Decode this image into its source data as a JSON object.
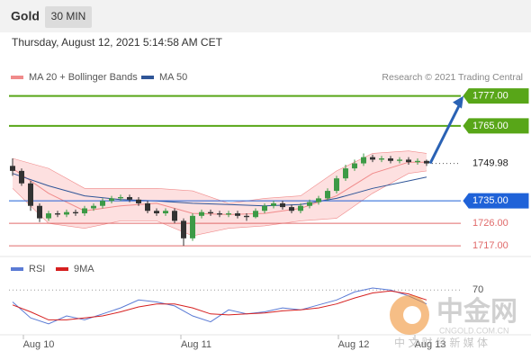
{
  "header": {
    "title": "Gold",
    "interval": "30 MIN",
    "timestamp": "Thursday, August 12, 2021 5:14:58 AM CET"
  },
  "watermark": {
    "brand": "中金网",
    "site": "CNGOLD.COM.CN",
    "tagline": "中 文 财 经 新 媒 体"
  },
  "chart_data": [
    {
      "type": "candlestick",
      "credit": "Research © 2021 Trading Central",
      "xlim": [
        -0.4,
        46.6
      ],
      "ylim": [
        1712,
        1792
      ],
      "up_color": "#3d9a46",
      "down_color": "#333333",
      "open": [
        1749,
        1747,
        1742,
        1733,
        1728,
        1730,
        1729.5,
        1730.5,
        1730,
        1732,
        1733,
        1735,
        1736,
        1736.5,
        1735.5,
        1734,
        1731,
        1730,
        1731,
        1727,
        1720,
        1729,
        1730.5,
        1730,
        1729.5,
        1730,
        1729,
        1728.5,
        1731,
        1733,
        1734,
        1732.5,
        1731,
        1733,
        1734.5,
        1736,
        1739,
        1744,
        1748,
        1750,
        1752.5,
        1751.5,
        1752,
        1751,
        1751.5,
        1750.5,
        1751
      ],
      "high": [
        1752,
        1748,
        1743,
        1734,
        1731,
        1731,
        1731.5,
        1731.5,
        1733,
        1734,
        1736,
        1737,
        1737.5,
        1737.5,
        1736.5,
        1735,
        1732,
        1732,
        1732,
        1728,
        1730,
        1731.5,
        1731.5,
        1731,
        1731,
        1731,
        1730,
        1732,
        1734,
        1735,
        1735,
        1733.5,
        1734,
        1735.5,
        1737,
        1740,
        1745,
        1749.5,
        1751.5,
        1754,
        1753.5,
        1753,
        1753,
        1752.5,
        1752.5,
        1752,
        1751.5
      ],
      "low": [
        1745,
        1741,
        1731,
        1726.5,
        1727,
        1728.5,
        1728.5,
        1729,
        1729,
        1731,
        1732,
        1734,
        1735,
        1734.5,
        1733,
        1730,
        1729,
        1729,
        1726,
        1717,
        1719,
        1728,
        1729,
        1728.5,
        1728.5,
        1728,
        1727,
        1728,
        1730,
        1732,
        1731.5,
        1730,
        1730,
        1732,
        1733.5,
        1735,
        1738,
        1743,
        1747,
        1749,
        1750.5,
        1750.5,
        1750,
        1750,
        1749.5,
        1749.5,
        1749
      ],
      "close": [
        1747,
        1742,
        1733,
        1728,
        1730,
        1729.5,
        1730.5,
        1730,
        1732,
        1733,
        1735,
        1736,
        1736.5,
        1735.5,
        1734,
        1731,
        1730,
        1731,
        1727,
        1720,
        1729,
        1730.5,
        1730,
        1729.5,
        1730,
        1729,
        1728.5,
        1731,
        1733,
        1734,
        1732.5,
        1731,
        1733,
        1734.5,
        1736,
        1739,
        1744,
        1748,
        1750,
        1752.5,
        1751.5,
        1752,
        1751,
        1751.5,
        1750.5,
        1751,
        1749.98
      ],
      "bands": {
        "name": "MA 20 + Bollinger Bands",
        "color": "#f08b8b",
        "fill": "#fde0e0",
        "x": [
          0,
          4,
          8,
          12,
          16,
          20,
          24,
          28,
          32,
          36,
          40,
          44,
          46
        ],
        "values": [
          1748,
          1738,
          1731,
          1733,
          1734,
          1730,
          1729.5,
          1730,
          1732,
          1737,
          1746,
          1750.5,
          1750.5
        ],
        "upper": [
          1752,
          1748,
          1740,
          1740,
          1740,
          1739,
          1734,
          1736,
          1737,
          1747,
          1754,
          1755,
          1754
        ],
        "lower": [
          1740,
          1726,
          1724,
          1727,
          1727,
          1721,
          1724,
          1725,
          1727,
          1728,
          1738,
          1746,
          1747
        ]
      },
      "series": [
        {
          "name": "MA 50",
          "color": "#2f5597",
          "x": [
            0,
            4,
            8,
            12,
            16,
            20,
            24,
            28,
            32,
            36,
            40,
            44,
            46
          ],
          "values": [
            1746,
            1741,
            1737,
            1735.5,
            1735,
            1734,
            1733.5,
            1733,
            1733.5,
            1736,
            1740,
            1743,
            1744.5
          ]
        }
      ],
      "levels": [
        {
          "value": 1777,
          "label": "1777.00",
          "color": "#58a618",
          "style": "box"
        },
        {
          "value": 1765,
          "label": "1765.00",
          "color": "#58a618",
          "style": "box"
        },
        {
          "value": 1749.98,
          "label": "1749.98",
          "color": "#333333",
          "style": "current"
        },
        {
          "value": 1735,
          "label": "1735.00",
          "color": "#1f62d8",
          "style": "box"
        },
        {
          "value": 1726,
          "label": "1726.00",
          "color": "#e06a6a",
          "style": "text"
        },
        {
          "value": 1717,
          "label": "1717.00",
          "color": "#e06a6a",
          "style": "text"
        }
      ],
      "target": 1777
    },
    {
      "type": "line",
      "xlim": [
        -0.4,
        46.6
      ],
      "ylim": [
        25,
        100
      ],
      "yticks": [
        70
      ],
      "xticks": [
        {
          "value": 2.9,
          "label": "Aug 10"
        },
        {
          "value": 20.4,
          "label": "Aug 11"
        },
        {
          "value": 37.9,
          "label": "Aug 12"
        },
        {
          "value": 46.4,
          "label": "Aug 13"
        }
      ],
      "x": [
        0,
        2,
        4,
        6,
        8,
        10,
        12,
        14,
        16,
        18,
        20,
        22,
        24,
        26,
        28,
        30,
        32,
        34,
        36,
        38,
        40,
        42,
        44,
        46
      ],
      "series": [
        {
          "name": "RSI",
          "color": "#5b7bd5",
          "values": [
            58,
            42,
            36,
            44,
            40,
            46,
            52,
            60,
            58,
            54,
            44,
            38,
            50,
            46,
            48,
            52,
            50,
            55,
            60,
            68,
            72,
            70,
            64,
            56
          ]
        },
        {
          "name": "9MA",
          "color": "#d62020",
          "values": [
            55,
            48,
            40,
            40,
            42,
            44,
            48,
            53,
            56,
            56,
            52,
            46,
            45,
            46,
            47,
            49,
            50,
            52,
            56,
            62,
            67,
            69,
            66,
            60
          ]
        }
      ]
    }
  ]
}
